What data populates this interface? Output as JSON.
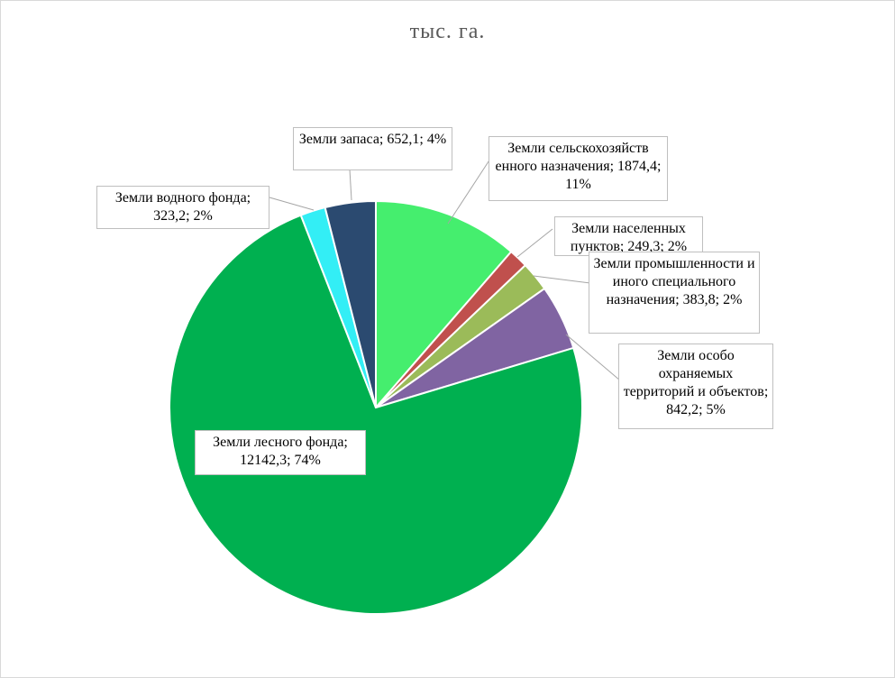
{
  "chart_data": {
    "type": "pie",
    "title": "тыс. га.",
    "start_angle_deg": 0,
    "slices": [
      {
        "label": "Земли сельскохозяйственного назначения",
        "value": 1874.4,
        "percent": "11%",
        "color": "#45ee6e",
        "text": "Земли сельскохозяйств енного назначения; 1874,4; 11%"
      },
      {
        "label": "Земли населенных пунктов",
        "value": 249.3,
        "percent": "2%",
        "color": "#c0504d",
        "text": "Земли населенных пунктов; 249,3; 2%"
      },
      {
        "label": "Земли промышленности и иного специального назначения",
        "value": 383.8,
        "percent": "2%",
        "color": "#9bbb59",
        "text": "Земли промышленности и иного специального назначения; 383,8; 2%"
      },
      {
        "label": "Земли особо охраняемых территорий и объектов",
        "value": 842.2,
        "percent": "5%",
        "color": "#8064a2",
        "text": "Земли особо охраняемых территорий и объектов; 842,2; 5%"
      },
      {
        "label": "Земли лесного фонда",
        "value": 12142.3,
        "percent": "74%",
        "color": "#00b050",
        "text": "Земли лесного фонда; 12142,3; 74%"
      },
      {
        "label": "Земли водного фонда",
        "value": 323.2,
        "percent": "2%",
        "color": "#33eef5",
        "text": "Земли водного фонда; 323,2; 2%"
      },
      {
        "label": "Земли запаса",
        "value": 652.1,
        "percent": "4%",
        "color": "#2b4a70",
        "text": "Земли запаса; 652,1; 4%"
      }
    ]
  }
}
